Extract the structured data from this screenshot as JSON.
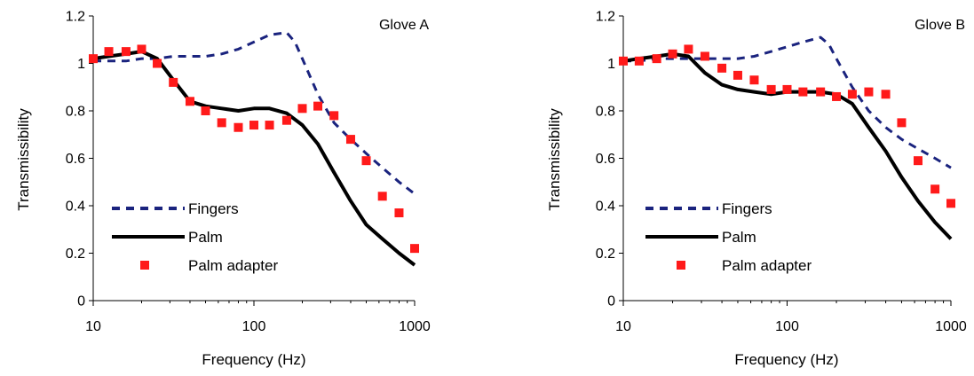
{
  "chart_data": [
    {
      "type": "line",
      "title": "Glove A",
      "xlabel": "Frequency  (Hz)",
      "ylabel": "Transmissibility",
      "x_scale": "log",
      "xlim": [
        10,
        1000
      ],
      "ylim": [
        0,
        1.2
      ],
      "xticks": [
        "10",
        "100",
        "1000"
      ],
      "yticks": [
        "0",
        "0.2",
        "0.4",
        "0.6",
        "0.8",
        "1",
        "1.2"
      ],
      "grid": false,
      "legend": "bottom-left",
      "series": [
        {
          "name": "Fingers",
          "style": "dashed",
          "color": "#1a237e",
          "x": [
            10,
            12.5,
            16,
            20,
            25,
            31.5,
            40,
            50,
            63,
            80,
            100,
            125,
            160,
            180,
            200,
            250,
            315,
            400,
            500,
            630,
            800,
            1000
          ],
          "y": [
            1.01,
            1.01,
            1.01,
            1.02,
            1.02,
            1.03,
            1.03,
            1.03,
            1.04,
            1.06,
            1.09,
            1.12,
            1.13,
            1.09,
            1.02,
            0.87,
            0.75,
            0.68,
            0.62,
            0.56,
            0.5,
            0.45
          ]
        },
        {
          "name": "Palm",
          "style": "solid",
          "color": "#000000",
          "x": [
            10,
            12.5,
            16,
            20,
            25,
            31.5,
            40,
            50,
            63,
            80,
            100,
            125,
            160,
            200,
            250,
            315,
            400,
            500,
            630,
            800,
            1000
          ],
          "y": [
            1.02,
            1.03,
            1.04,
            1.05,
            1.02,
            0.93,
            0.84,
            0.82,
            0.81,
            0.8,
            0.81,
            0.81,
            0.79,
            0.74,
            0.66,
            0.54,
            0.42,
            0.32,
            0.26,
            0.2,
            0.15
          ]
        },
        {
          "name": "Palm adapter",
          "style": "markers",
          "color": "#ff1a1a",
          "x": [
            10,
            12.5,
            16,
            20,
            25,
            31.5,
            40,
            50,
            63,
            80,
            100,
            125,
            160,
            200,
            250,
            315,
            400,
            500,
            630,
            800,
            1000
          ],
          "y": [
            1.02,
            1.05,
            1.05,
            1.06,
            1.0,
            0.92,
            0.84,
            0.8,
            0.75,
            0.73,
            0.74,
            0.74,
            0.76,
            0.81,
            0.82,
            0.78,
            0.68,
            0.59,
            0.44,
            0.37,
            0.22
          ]
        }
      ]
    },
    {
      "type": "line",
      "title": "Glove B",
      "xlabel": "Frequency  (Hz)",
      "ylabel": "Transmissibility",
      "x_scale": "log",
      "xlim": [
        10,
        1000
      ],
      "ylim": [
        0,
        1.2
      ],
      "xticks": [
        "10",
        "100",
        "1000"
      ],
      "yticks": [
        "0",
        "0.2",
        "0.4",
        "0.6",
        "0.8",
        "1",
        "1.2"
      ],
      "grid": false,
      "legend": "bottom-left",
      "series": [
        {
          "name": "Fingers",
          "style": "dashed",
          "color": "#1a237e",
          "x": [
            10,
            12.5,
            16,
            20,
            25,
            31.5,
            40,
            50,
            63,
            80,
            100,
            125,
            160,
            180,
            200,
            250,
            315,
            400,
            500,
            630,
            800,
            1000
          ],
          "y": [
            1.01,
            1.01,
            1.02,
            1.02,
            1.02,
            1.02,
            1.02,
            1.02,
            1.03,
            1.05,
            1.07,
            1.09,
            1.11,
            1.08,
            1.02,
            0.9,
            0.8,
            0.73,
            0.68,
            0.64,
            0.6,
            0.56
          ]
        },
        {
          "name": "Palm",
          "style": "solid",
          "color": "#000000",
          "x": [
            10,
            12.5,
            16,
            20,
            25,
            31.5,
            40,
            50,
            63,
            80,
            100,
            125,
            160,
            200,
            250,
            315,
            400,
            500,
            630,
            800,
            1000
          ],
          "y": [
            1.01,
            1.02,
            1.03,
            1.04,
            1.03,
            0.96,
            0.91,
            0.89,
            0.88,
            0.87,
            0.88,
            0.88,
            0.88,
            0.87,
            0.83,
            0.73,
            0.63,
            0.52,
            0.42,
            0.33,
            0.26
          ]
        },
        {
          "name": "Palm adapter",
          "style": "markers",
          "color": "#ff1a1a",
          "x": [
            10,
            12.5,
            16,
            20,
            25,
            31.5,
            40,
            50,
            63,
            80,
            100,
            125,
            160,
            200,
            250,
            315,
            400,
            500,
            630,
            800,
            1000
          ],
          "y": [
            1.01,
            1.01,
            1.02,
            1.04,
            1.06,
            1.03,
            0.98,
            0.95,
            0.93,
            0.89,
            0.89,
            0.88,
            0.88,
            0.86,
            0.87,
            0.88,
            0.87,
            0.75,
            0.59,
            0.47,
            0.41
          ]
        }
      ]
    }
  ]
}
